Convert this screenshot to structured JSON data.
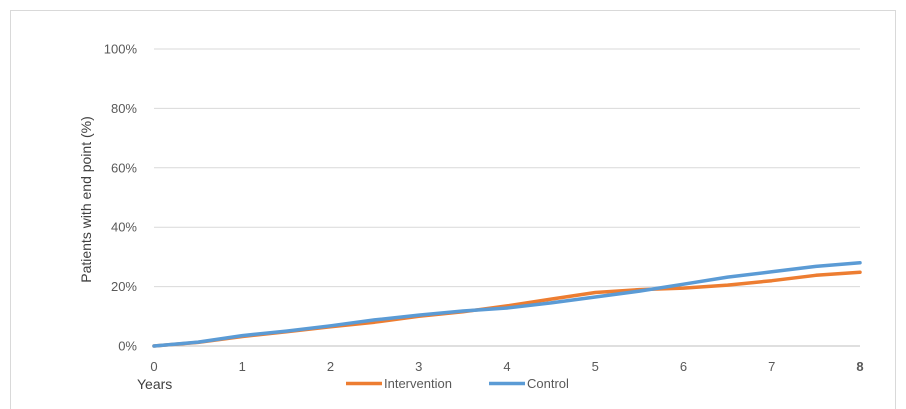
{
  "chart_data": {
    "type": "line",
    "title": "",
    "xlabel": "Years",
    "ylabel": "Patients with end point (%)",
    "xlim": [
      0,
      8
    ],
    "ylim": [
      0,
      100
    ],
    "x_ticks": [
      "0",
      "1",
      "2",
      "3",
      "4",
      "5",
      "6",
      "7",
      "8"
    ],
    "y_ticks": [
      "0%",
      "20%",
      "40%",
      "60%",
      "80%",
      "100%"
    ],
    "grid": true,
    "legend_position": "bottom",
    "series": [
      {
        "name": "Intervention",
        "color": "#ED7D31",
        "x": [
          0,
          0.5,
          1,
          1.5,
          2,
          2.5,
          3,
          3.5,
          4,
          4.5,
          5,
          5.5,
          6,
          6.5,
          7,
          7.5,
          8
        ],
        "y": [
          0,
          1.2,
          3.2,
          4.8,
          6.5,
          8.0,
          10.0,
          11.5,
          13.5,
          15.8,
          18.0,
          19.0,
          19.5,
          20.5,
          22.0,
          23.8,
          24.8
        ]
      },
      {
        "name": "Control",
        "color": "#5B9BD5",
        "x": [
          0,
          0.5,
          1,
          1.5,
          2,
          2.5,
          3,
          3.5,
          4,
          4.5,
          5,
          5.5,
          6,
          6.5,
          7,
          7.5,
          8
        ],
        "y": [
          0,
          1.3,
          3.5,
          5.0,
          6.8,
          8.8,
          10.4,
          11.8,
          12.8,
          14.5,
          16.5,
          18.5,
          20.8,
          23.2,
          25.0,
          26.8,
          28.0
        ]
      }
    ]
  }
}
